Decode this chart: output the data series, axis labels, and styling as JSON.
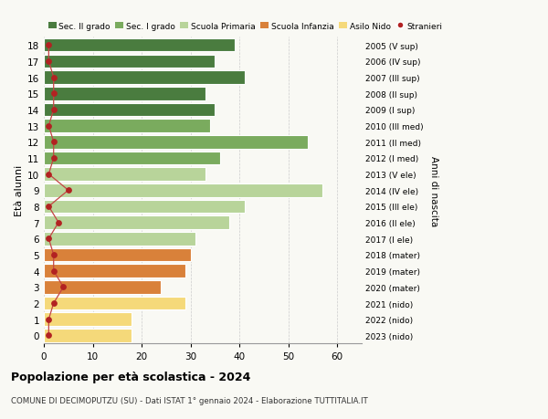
{
  "ages": [
    18,
    17,
    16,
    15,
    14,
    13,
    12,
    11,
    10,
    9,
    8,
    7,
    6,
    5,
    4,
    3,
    2,
    1,
    0
  ],
  "bar_values": [
    39,
    35,
    41,
    33,
    35,
    34,
    54,
    36,
    33,
    57,
    41,
    38,
    31,
    30,
    29,
    24,
    29,
    18,
    18
  ],
  "stranieri": [
    1,
    1,
    2,
    2,
    2,
    1,
    2,
    2,
    1,
    5,
    1,
    3,
    1,
    2,
    2,
    4,
    2,
    1,
    1
  ],
  "right_labels": [
    "2005 (V sup)",
    "2006 (IV sup)",
    "2007 (III sup)",
    "2008 (II sup)",
    "2009 (I sup)",
    "2010 (III med)",
    "2011 (II med)",
    "2012 (I med)",
    "2013 (V ele)",
    "2014 (IV ele)",
    "2015 (III ele)",
    "2016 (II ele)",
    "2017 (I ele)",
    "2018 (mater)",
    "2019 (mater)",
    "2020 (mater)",
    "2021 (nido)",
    "2022 (nido)",
    "2023 (nido)"
  ],
  "bar_colors": [
    "#4a7c3f",
    "#4a7c3f",
    "#4a7c3f",
    "#4a7c3f",
    "#4a7c3f",
    "#7aab5e",
    "#7aab5e",
    "#7aab5e",
    "#b8d49a",
    "#b8d49a",
    "#b8d49a",
    "#b8d49a",
    "#b8d49a",
    "#d9813a",
    "#d9813a",
    "#d9813a",
    "#f5d97a",
    "#f5d97a",
    "#f5d97a"
  ],
  "legend_labels": [
    "Sec. II grado",
    "Sec. I grado",
    "Scuola Primaria",
    "Scuola Infanzia",
    "Asilo Nido",
    "Stranieri"
  ],
  "legend_colors": [
    "#4a7c3f",
    "#7aab5e",
    "#b8d49a",
    "#d9813a",
    "#f5d97a",
    "#b22222"
  ],
  "ylabel": "Età alunni",
  "right_ylabel": "Anni di nascita",
  "title": "Popolazione per età scolastica - 2024",
  "subtitle": "COMUNE DI DECIMOPUTZU (SU) - Dati ISTAT 1° gennaio 2024 - Elaborazione TUTTITALIA.IT",
  "xlim": [
    0,
    65
  ],
  "xticks": [
    0,
    10,
    20,
    30,
    40,
    50,
    60
  ],
  "bg_color": "#f9f9f4",
  "bar_edge_color": "white",
  "stranieri_color": "#b22222",
  "stranieri_line_color": "#c44444"
}
